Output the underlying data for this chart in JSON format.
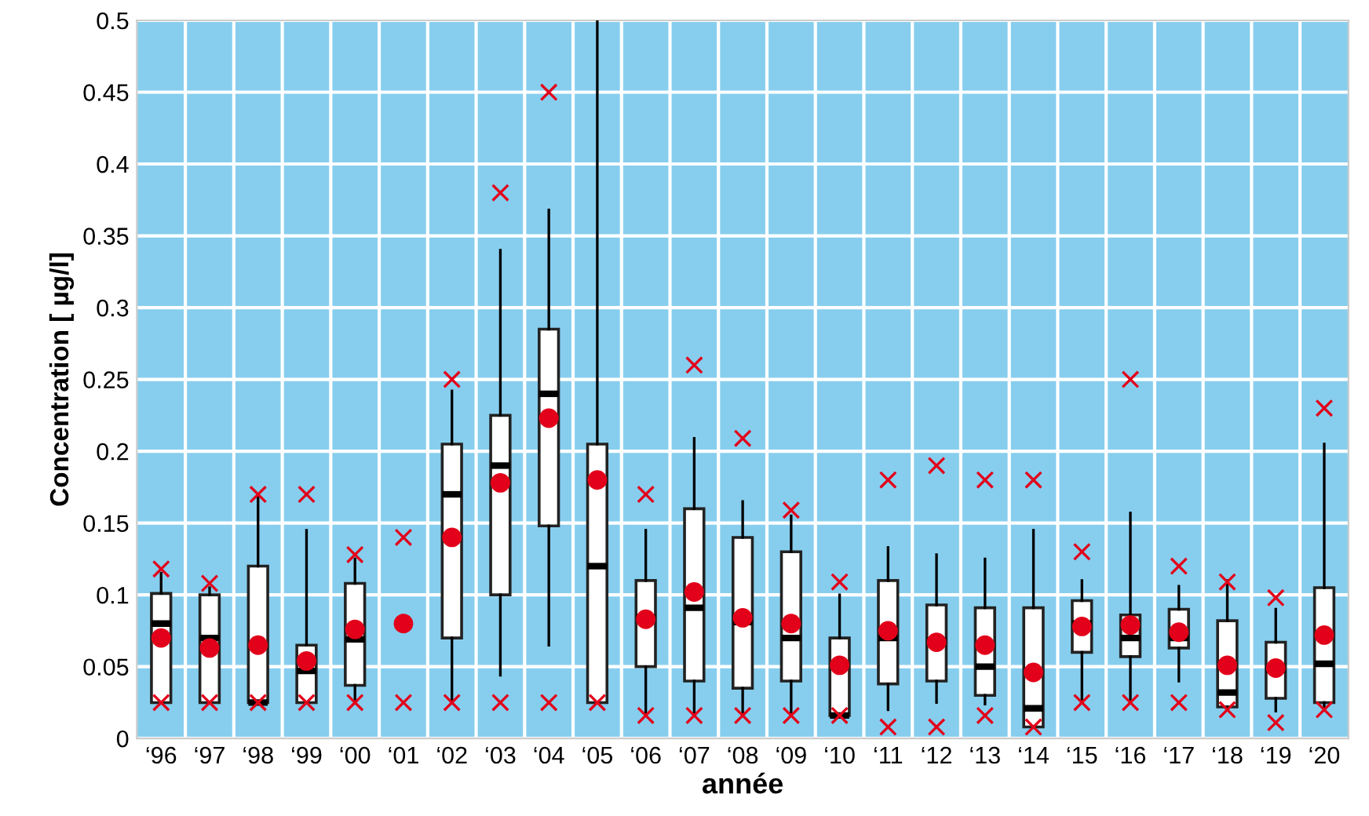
{
  "chart_data": {
    "type": "box",
    "xlabel": "année",
    "ylabel": "Concentration [ µg/l]",
    "categories": [
      "‘96",
      "‘97",
      "‘98",
      "‘99",
      "‘00",
      "‘01",
      "‘02",
      "‘03",
      "‘04",
      "‘05",
      "‘06",
      "‘07",
      "‘08",
      "‘09",
      "‘10",
      "‘11",
      "‘12",
      "‘13",
      "‘14",
      "‘15",
      "‘16",
      "‘17",
      "‘18",
      "‘19",
      "‘20"
    ],
    "ylim": [
      0,
      0.5
    ],
    "yticks": [
      0,
      0.05,
      0.1,
      0.15,
      0.2,
      0.25,
      0.3,
      0.35,
      0.4,
      0.45,
      0.5
    ],
    "grid": true,
    "series": [
      {
        "color": "#ffffff",
        "boxes": [
          {
            "low": 0.025,
            "q1": 0.025,
            "median": 0.08,
            "q3": 0.101,
            "high": 0.115
          },
          {
            "low": 0.025,
            "q1": 0.025,
            "median": 0.07,
            "q3": 0.1,
            "high": 0.105
          },
          {
            "low": 0.025,
            "q1": 0.025,
            "median": 0.025,
            "q3": 0.12,
            "high": 0.17
          },
          {
            "low": 0.025,
            "q1": 0.025,
            "median": 0.047,
            "q3": 0.065,
            "high": 0.145
          },
          {
            "low": 0.025,
            "q1": 0.037,
            "median": 0.069,
            "q3": 0.108,
            "high": 0.125
          },
          null,
          {
            "low": 0.025,
            "q1": 0.07,
            "median": 0.17,
            "q3": 0.205,
            "high": 0.242
          },
          {
            "low": 0.044,
            "q1": 0.1,
            "median": 0.19,
            "q3": 0.225,
            "high": 0.34
          },
          {
            "low": 0.065,
            "q1": 0.148,
            "median": 0.24,
            "q3": 0.285,
            "high": 0.368
          },
          {
            "low": 0.025,
            "q1": 0.025,
            "median": 0.12,
            "q3": 0.205,
            "high": 0.5
          },
          {
            "low": 0.016,
            "q1": 0.05,
            "median": 0.084,
            "q3": 0.11,
            "high": 0.145
          },
          {
            "low": 0.016,
            "q1": 0.04,
            "median": 0.091,
            "q3": 0.16,
            "high": 0.209
          },
          {
            "low": 0.016,
            "q1": 0.035,
            "median": 0.081,
            "q3": 0.14,
            "high": 0.165
          },
          {
            "low": 0.016,
            "q1": 0.04,
            "median": 0.07,
            "q3": 0.13,
            "high": 0.155
          },
          {
            "low": 0.016,
            "q1": 0.016,
            "median": 0.016,
            "q3": 0.07,
            "high": 0.1
          },
          {
            "low": 0.02,
            "q1": 0.038,
            "median": 0.07,
            "q3": 0.11,
            "high": 0.133
          },
          {
            "low": 0.025,
            "q1": 0.04,
            "median": 0.068,
            "q3": 0.093,
            "high": 0.128
          },
          {
            "low": 0.024,
            "q1": 0.03,
            "median": 0.05,
            "q3": 0.091,
            "high": 0.125
          },
          {
            "low": 0.008,
            "q1": 0.008,
            "median": 0.021,
            "q3": 0.091,
            "high": 0.145
          },
          {
            "low": 0.025,
            "q1": 0.06,
            "median": 0.08,
            "q3": 0.096,
            "high": 0.11
          },
          {
            "low": 0.025,
            "q1": 0.057,
            "median": 0.07,
            "q3": 0.086,
            "high": 0.157
          },
          {
            "low": 0.04,
            "q1": 0.063,
            "median": 0.07,
            "q3": 0.09,
            "high": 0.106
          },
          {
            "low": 0.02,
            "q1": 0.022,
            "median": 0.032,
            "q3": 0.082,
            "high": 0.11
          },
          {
            "low": 0.019,
            "q1": 0.028,
            "median": 0.048,
            "q3": 0.067,
            "high": 0.09
          },
          {
            "low": 0.02,
            "q1": 0.025,
            "median": 0.052,
            "q3": 0.105,
            "high": 0.205
          }
        ]
      },
      {
        "type": "scatter",
        "marker": "circle",
        "color": "#e2001a",
        "values": [
          0.07,
          0.063,
          0.065,
          0.054,
          0.076,
          0.08,
          0.14,
          0.178,
          0.223,
          0.18,
          0.083,
          0.102,
          0.084,
          0.08,
          0.051,
          0.075,
          0.067,
          0.065,
          0.046,
          0.078,
          0.079,
          0.074,
          0.051,
          0.049,
          0.072
        ]
      },
      {
        "type": "scatter",
        "marker": "cross",
        "color": "#e2001a",
        "values": [
          0.118,
          0.108,
          0.17,
          0.17,
          0.128,
          0.14,
          0.25,
          0.38,
          0.45,
          null,
          0.17,
          0.26,
          0.209,
          0.159,
          0.109,
          0.18,
          0.19,
          0.18,
          0.18,
          0.13,
          0.25,
          0.12,
          0.109,
          0.098,
          0.23
        ]
      },
      {
        "type": "scatter",
        "marker": "cross",
        "color": "#e2001a",
        "values": [
          0.025,
          0.025,
          0.025,
          0.025,
          0.025,
          0.025,
          0.025,
          0.025,
          0.025,
          0.025,
          0.016,
          0.016,
          0.016,
          0.016,
          0.016,
          0.008,
          0.008,
          0.016,
          0.008,
          0.025,
          0.025,
          0.025,
          0.02,
          0.011,
          0.02
        ]
      }
    ]
  }
}
